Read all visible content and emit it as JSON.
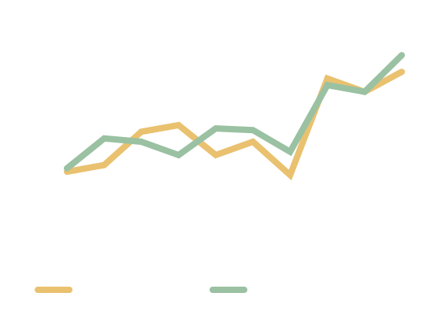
{
  "chart_data": {
    "type": "line",
    "title": "",
    "xlabel": "",
    "ylabel": "",
    "grid": false,
    "legend_placement": "bottom",
    "x": [
      1,
      2,
      3,
      4,
      5,
      6,
      7,
      8,
      9,
      10
    ],
    "series": [
      {
        "color": "#E9C16F",
        "values": [
          2.6,
          2.8,
          3.8,
          4.0,
          3.1,
          3.5,
          2.5,
          5.4,
          5.0,
          5.6
        ]
      },
      {
        "color": "#9AC1A2",
        "values": [
          2.7,
          3.6,
          3.5,
          3.1,
          3.9,
          3.85,
          3.2,
          5.2,
          5.0,
          6.1
        ]
      }
    ],
    "ylim": [
      0,
      7
    ]
  }
}
